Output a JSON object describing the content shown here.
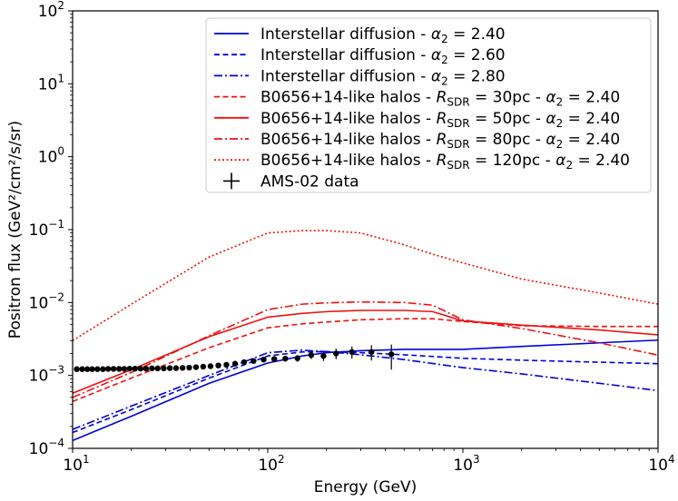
{
  "chart_data": {
    "type": "line",
    "xlabel": "Energy (GeV)",
    "ylabel": "Positron flux (GeV²/cm²/s/sr)",
    "xscale": "log",
    "yscale": "log",
    "xlim": [
      10,
      10000
    ],
    "ylim": [
      0.0001,
      100
    ],
    "legend_position": "top-right",
    "x_ticks": [
      {
        "base": "10",
        "exp": "1",
        "value": 10
      },
      {
        "base": "10",
        "exp": "2",
        "value": 100
      },
      {
        "base": "10",
        "exp": "3",
        "value": 1000
      },
      {
        "base": "10",
        "exp": "4",
        "value": 10000
      }
    ],
    "y_ticks": [
      {
        "base": "10",
        "exp": "−4",
        "value": 0.0001
      },
      {
        "base": "10",
        "exp": "−3",
        "value": 0.001
      },
      {
        "base": "10",
        "exp": "−2",
        "value": 0.01
      },
      {
        "base": "10",
        "exp": "−1",
        "value": 0.1
      },
      {
        "base": "10",
        "exp": "0",
        "value": 1
      },
      {
        "base": "10",
        "exp": "1",
        "value": 10
      },
      {
        "base": "10",
        "exp": "2",
        "value": 100
      }
    ],
    "series": [
      {
        "label_parts": [
          "Interstellar diffusion - ",
          "α",
          "2",
          " = 2.40"
        ],
        "color": "#0000dd",
        "dash": "solid",
        "x": [
          10,
          20,
          50,
          100,
          150,
          200,
          300,
          500,
          1000,
          2000,
          5000,
          10000
        ],
        "y": [
          0.000128,
          0.000276,
          0.00078,
          0.00148,
          0.00185,
          0.00205,
          0.00218,
          0.00228,
          0.00228,
          0.0025,
          0.0028,
          0.00305
        ]
      },
      {
        "label_parts": [
          "Interstellar diffusion - ",
          "α",
          "2",
          " = 2.60"
        ],
        "color": "#0000dd",
        "dash": "dashed",
        "x": [
          10,
          20,
          50,
          100,
          150,
          200,
          300,
          500,
          1000,
          2000,
          5000,
          10000
        ],
        "y": [
          0.000165,
          0.00034,
          0.00092,
          0.00185,
          0.0021,
          0.00212,
          0.00205,
          0.00192,
          0.00172,
          0.00162,
          0.00152,
          0.00145
        ]
      },
      {
        "label_parts": [
          "Interstellar diffusion - ",
          "α",
          "2",
          " = 2.80"
        ],
        "color": "#0000dd",
        "dash": "dashdot",
        "x": [
          10,
          20,
          50,
          100,
          150,
          200,
          300,
          500,
          1000,
          2000,
          5000,
          10000
        ],
        "y": [
          0.000182,
          0.00038,
          0.001,
          0.00205,
          0.00222,
          0.00212,
          0.00192,
          0.00165,
          0.00128,
          0.00105,
          0.00078,
          0.00062
        ]
      },
      {
        "label_parts": [
          "B0656+14-like halos - ",
          "R",
          "SDR",
          " = 30pc - ",
          "α",
          "2",
          " = 2.40"
        ],
        "color": "#ee1111",
        "dash": "dashed",
        "x": [
          10,
          20,
          50,
          100,
          150,
          200,
          300,
          500,
          700,
          1000,
          2000,
          5000,
          10000
        ],
        "y": [
          0.00044,
          0.00092,
          0.0024,
          0.0045,
          0.0051,
          0.0054,
          0.0058,
          0.006,
          0.006,
          0.0055,
          0.0048,
          0.0047,
          0.0047
        ]
      },
      {
        "label_parts": [
          "B0656+14-like halos - ",
          "R",
          "SDR",
          " = 50pc - ",
          "α",
          "2",
          " = 2.40"
        ],
        "color": "#ee1111",
        "dash": "solid",
        "x": [
          10,
          20,
          50,
          100,
          150,
          200,
          300,
          500,
          700,
          1000,
          2000,
          5000,
          10000
        ],
        "y": [
          0.00057,
          0.0012,
          0.0034,
          0.0063,
          0.0071,
          0.0075,
          0.0078,
          0.0078,
          0.0075,
          0.0056,
          0.0049,
          0.0042,
          0.0036
        ]
      },
      {
        "label_parts": [
          "B0656+14-like halos - ",
          "R",
          "SDR",
          " = 80pc - ",
          "α",
          "2",
          " = 2.40"
        ],
        "color": "#ee1111",
        "dash": "dashdot",
        "x": [
          10,
          20,
          50,
          100,
          150,
          200,
          300,
          500,
          700,
          1000,
          2000,
          5000,
          10000
        ],
        "y": [
          0.0005,
          0.0011,
          0.0035,
          0.008,
          0.0095,
          0.0099,
          0.0102,
          0.01,
          0.0092,
          0.0058,
          0.0044,
          0.0028,
          0.0019
        ]
      },
      {
        "label_parts": [
          "B0656+14-like halos - ",
          "R",
          "SDR",
          " = 120pc - ",
          "α",
          "2",
          " = 2.40"
        ],
        "color": "#ee1111",
        "dash": "dotted",
        "x": [
          10,
          20,
          50,
          100,
          150,
          200,
          300,
          500,
          700,
          1000,
          2000,
          5000,
          10000
        ],
        "y": [
          0.003,
          0.0095,
          0.042,
          0.09,
          0.097,
          0.097,
          0.09,
          0.062,
          0.046,
          0.035,
          0.021,
          0.0135,
          0.0095
        ]
      }
    ],
    "ams02": {
      "label": "AMS-02 data",
      "color": "#000000",
      "x": [
        10.5,
        11.2,
        11.9,
        12.6,
        13.4,
        14.3,
        15.2,
        16.2,
        17.3,
        18.4,
        19.6,
        20.9,
        22.3,
        23.8,
        25.5,
        27.3,
        29.3,
        31.5,
        33.9,
        36.6,
        39.6,
        42.9,
        46.7,
        50.9,
        55.8,
        61.4,
        68.0,
        75.6,
        84.6,
        95.3,
        108,
        123,
        142,
        167,
        193,
        224,
        270,
        340,
        430
      ],
      "y": [
        0.00122,
        0.00122,
        0.00122,
        0.00122,
        0.00122,
        0.00122,
        0.00123,
        0.00123,
        0.00123,
        0.00123,
        0.00124,
        0.00124,
        0.00124,
        0.00124,
        0.00125,
        0.00125,
        0.00125,
        0.00126,
        0.00126,
        0.00127,
        0.00128,
        0.0013,
        0.00132,
        0.00134,
        0.00137,
        0.0014,
        0.00145,
        0.00152,
        0.00158,
        0.00165,
        0.00168,
        0.0017,
        0.00172,
        0.0019,
        0.00185,
        0.002,
        0.0021,
        0.0021,
        0.00195
      ],
      "err_lo": [
        2e-05,
        2e-05,
        2e-05,
        2e-05,
        2e-05,
        2e-05,
        2e-05,
        2e-05,
        2e-05,
        2e-05,
        2e-05,
        2e-05,
        2e-05,
        2e-05,
        2e-05,
        2e-05,
        2e-05,
        2e-05,
        2e-05,
        2e-05,
        2e-05,
        2e-05,
        3e-05,
        3e-05,
        3e-05,
        4e-05,
        5e-05,
        6e-05,
        8e-05,
        0.0001,
        0.00012,
        0.00015,
        0.00018,
        0.00022,
        0.00027,
        0.00033,
        0.0004,
        0.0005,
        0.00075
      ],
      "err_hi": [
        2e-05,
        2e-05,
        2e-05,
        2e-05,
        2e-05,
        2e-05,
        2e-05,
        2e-05,
        2e-05,
        2e-05,
        2e-05,
        2e-05,
        2e-05,
        2e-05,
        2e-05,
        2e-05,
        2e-05,
        2e-05,
        2e-05,
        2e-05,
        2e-05,
        2e-05,
        3e-05,
        3e-05,
        3e-05,
        4e-05,
        5e-05,
        6e-05,
        8e-05,
        0.0001,
        0.00012,
        0.00015,
        0.00018,
        0.00022,
        0.00027,
        0.00033,
        0.0004,
        0.0005,
        0.0007
      ]
    }
  }
}
